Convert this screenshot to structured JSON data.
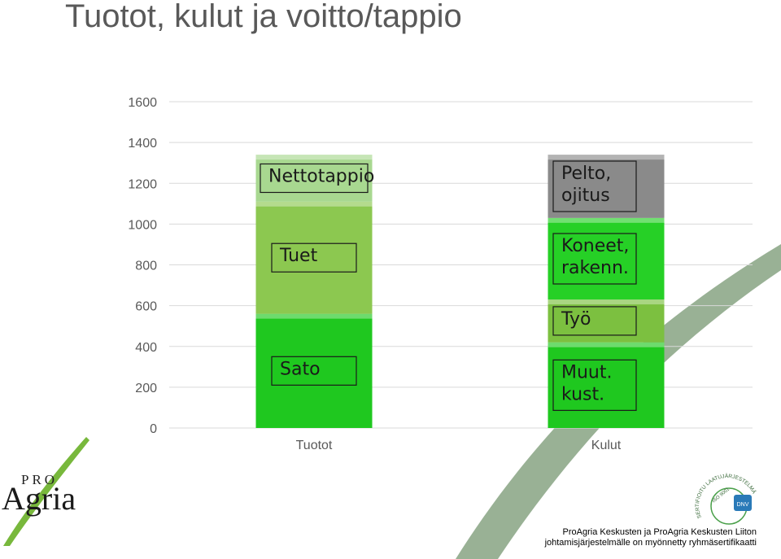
{
  "title": "Tuotot, kulut ja voitto/tappio",
  "chart_data": {
    "type": "bar",
    "stacked": true,
    "categories": [
      "Tuotot",
      "Kulut"
    ],
    "ylim": [
      0,
      1600
    ],
    "yticks": [
      0,
      200,
      400,
      600,
      800,
      1000,
      1200,
      1400,
      1600
    ],
    "grid": true,
    "segments": [
      {
        "category": "Tuotot",
        "label": "Sato",
        "value": 560,
        "color": "#1fc81f"
      },
      {
        "category": "Tuotot",
        "label": "Tuet",
        "value": 550,
        "color": "#8cc850"
      },
      {
        "category": "Tuotot",
        "label": "Nettotappio",
        "value": 230,
        "color": "#a8d890"
      },
      {
        "category": "Kulut",
        "label": "Muut.\nkust.",
        "value": 420,
        "color": "#1fc81f"
      },
      {
        "category": "Kulut",
        "label": "Työ",
        "value": 210,
        "color": "#7cc040"
      },
      {
        "category": "Kulut",
        "label": "Koneet,\nrakenn.",
        "value": 400,
        "color": "#26d026"
      },
      {
        "category": "Kulut",
        "label": "Pelto,\nojitus",
        "value": 310,
        "color": "#8a8a8a"
      }
    ]
  },
  "logo": {
    "pro": "PRO",
    "agria": "Agria"
  },
  "footer": {
    "line1": "ProAgria Keskusten ja ProAgria Keskusten Liiton",
    "line2": "johtamisjärjestelmälle on myönnetty ryhmäsertifikaatti"
  },
  "cert": {
    "arc_text": "SERTIFIOITU LAATUJÄRJESTELMÄ",
    "iso": "ISO 9001",
    "badge": "DNV"
  },
  "colors": {
    "title": "#595959",
    "axis_text": "#595959",
    "grid": "#d9d9d9",
    "leaf": "#8ea889",
    "logo_leaf": "#78b83c"
  }
}
